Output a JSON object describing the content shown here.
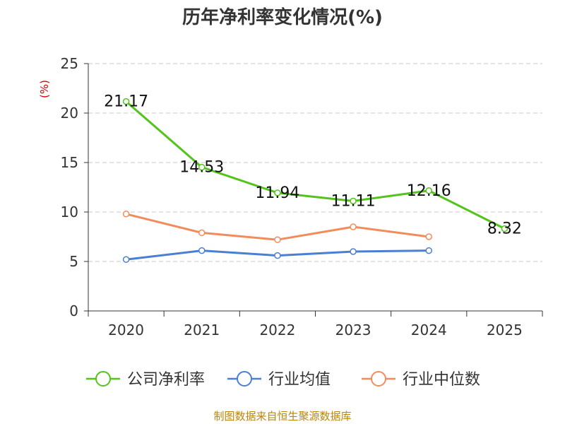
{
  "title": "历年净利率变化情况(%)",
  "source": "制图数据来自恒生聚源数据库",
  "chart_data": {
    "type": "line",
    "title": "历年净利率变化情况(%)",
    "ylabel": "(%)",
    "xlabel": "",
    "ylim": [
      0,
      25
    ],
    "yticks": [
      0,
      5,
      10,
      15,
      20,
      25
    ],
    "categories": [
      "2020",
      "2021",
      "2022",
      "2023",
      "2024",
      "2025"
    ],
    "grid": true,
    "legend_position": "bottom",
    "series": [
      {
        "name": "公司净利率",
        "color": "#52c41a",
        "values": [
          21.17,
          14.53,
          11.94,
          11.11,
          12.16,
          8.32
        ],
        "labels": [
          "21.17",
          "14.53",
          "11.94",
          "11.11",
          "12.16",
          "8.32"
        ]
      },
      {
        "name": "行业均值",
        "color": "#4a7fd4",
        "values": [
          5.2,
          6.1,
          5.6,
          6.0,
          6.1,
          null
        ]
      },
      {
        "name": "行业中位数",
        "color": "#f28c5a",
        "values": [
          9.8,
          7.9,
          7.2,
          8.5,
          7.5,
          null
        ]
      }
    ]
  }
}
